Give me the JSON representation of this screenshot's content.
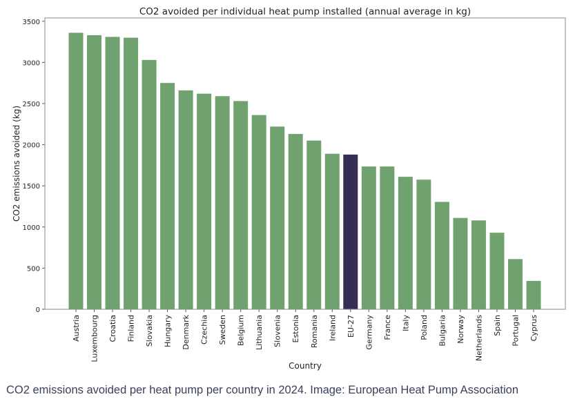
{
  "chart_data": {
    "type": "bar",
    "title": "CO2 avoided per individual heat pump installed (annual average in kg)",
    "xlabel": "Country",
    "ylabel": "CO2 emissions avoided (kg)",
    "ylim": [
      0,
      3540
    ],
    "yticks": [
      0,
      500,
      1000,
      1500,
      2000,
      2500,
      3000,
      3500
    ],
    "grid": false,
    "categories": [
      "Austria",
      "Luxembourg",
      "Croatia",
      "Finland",
      "Slovakia",
      "Hungary",
      "Denmark",
      "Czechia",
      "Sweden",
      "Belgium",
      "Lithuania",
      "Slovenia",
      "Estonia",
      "Romania",
      "Ireland",
      "EU-27",
      "Germany",
      "France",
      "Italy",
      "Poland",
      "Bulgaria",
      "Norway",
      "Netherlands",
      "Spain",
      "Portugal",
      "Cyprus"
    ],
    "values": [
      3360,
      3330,
      3310,
      3300,
      3030,
      2750,
      2660,
      2620,
      2590,
      2530,
      2360,
      2220,
      2130,
      2050,
      1890,
      1880,
      1735,
      1735,
      1610,
      1575,
      1305,
      1110,
      1080,
      930,
      610,
      345
    ],
    "colors": {
      "default": "#6fa26e",
      "highlight": "#342f52",
      "highlight_category": "EU-27"
    }
  },
  "caption": "CO2 emissions avoided per heat pump per country in 2024. Image: European Heat Pump Association"
}
